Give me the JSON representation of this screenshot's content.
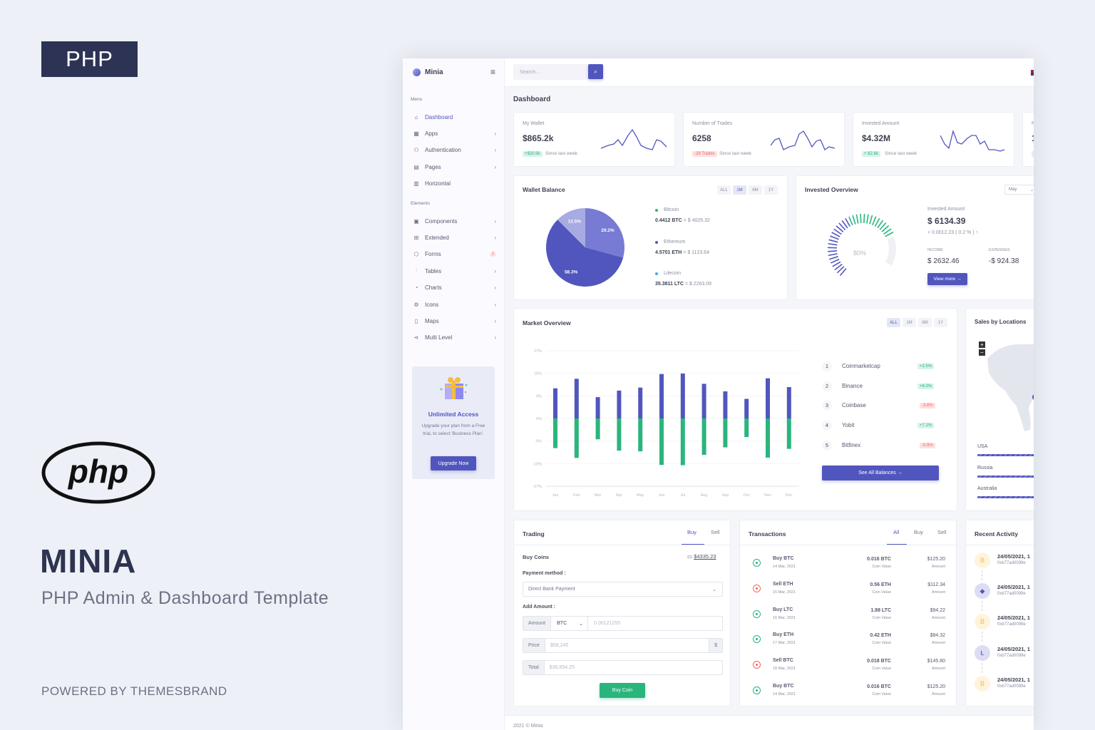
{
  "promo": {
    "badge": "PHP",
    "logo_text": "php",
    "title": "MINIA",
    "subtitle": "PHP Admin & Dashboard Template",
    "powered": "POWERED BY THEMESBRAND"
  },
  "colors": {
    "primary": "#5156be",
    "success": "#2ab57d",
    "danger": "#fd625e",
    "warning": "#ffbf53",
    "badge_bg": "#2c3354"
  },
  "sidebar": {
    "app_name": "Minia",
    "menu_label": "Menu",
    "elements_label": "Elements",
    "menu_items": [
      {
        "label": "Dashboard",
        "icon": "home-icon",
        "active": true
      },
      {
        "label": "Apps",
        "icon": "grid-icon"
      },
      {
        "label": "Authentication",
        "icon": "users-icon"
      },
      {
        "label": "Pages",
        "icon": "file-icon"
      },
      {
        "label": "Horizontal",
        "icon": "layout-icon"
      }
    ],
    "element_items": [
      {
        "label": "Components",
        "icon": "briefcase-icon"
      },
      {
        "label": "Extended",
        "icon": "gift-icon"
      },
      {
        "label": "Forms",
        "icon": "box-icon",
        "badge": "7"
      },
      {
        "label": "Tables",
        "icon": "sliders-icon"
      },
      {
        "label": "Charts",
        "icon": "pie-chart-icon"
      },
      {
        "label": "Icons",
        "icon": "cpu-icon"
      },
      {
        "label": "Maps",
        "icon": "map-icon"
      },
      {
        "label": "Multi Level",
        "icon": "share-icon"
      }
    ],
    "upgrade": {
      "title": "Unlimited Access",
      "text": "Upgrade your plan from a Free trial, to select 'Business Plan'.",
      "button": "Upgrade Now"
    }
  },
  "topbar": {
    "search_placeholder": "Search..."
  },
  "page_title": "Dashboard",
  "stats": [
    {
      "label": "My Wallet",
      "value": "$865.2k",
      "change": "+$20.9k",
      "trend": "up",
      "note": "Since last week"
    },
    {
      "label": "Number of Trades",
      "value": "6258",
      "change": "-29 Trades",
      "trend": "down",
      "note": "Since last week"
    },
    {
      "label": "Invested Amount",
      "value": "$4.32M",
      "change": "+ $2.8k",
      "trend": "up",
      "note": "Since last week"
    },
    {
      "label": "P",
      "value": "1",
      "change": "+",
      "trend": "up",
      "note": ""
    }
  ],
  "wallet": {
    "title": "Wallet Balance",
    "filters": [
      "ALL",
      "1M",
      "6M",
      "1Y"
    ],
    "active_filter": "1M",
    "slices": [
      {
        "label": "29.2%",
        "value": 29.2,
        "color": "#777bd3"
      },
      {
        "label": "58.3%",
        "value": 58.3,
        "color": "#5156be"
      },
      {
        "label": "12.5%",
        "value": 12.5,
        "color": "#a8aae2"
      }
    ],
    "coins": [
      {
        "name": "Bitcoin",
        "amount": "0.4412 BTC",
        "usd": "= $ 4025.32",
        "dot": "#2ab57d"
      },
      {
        "name": "Ethereum",
        "amount": "4.5701 ETH",
        "usd": "= $ 1123.64",
        "dot": "#5156be"
      },
      {
        "name": "Litecoin",
        "amount": "35.3811 LTC",
        "usd": "= $ 2263.09",
        "dot": "#4ba6ef"
      }
    ]
  },
  "invested": {
    "title": "Invested Overview",
    "month": "May",
    "gauge_percent": 80,
    "gauge_label": "80%",
    "amount_label": "Invested Amount",
    "amount": "$ 6134.39",
    "change": "+ 0.0012.23 ( 0.2 % )",
    "income_label": "INCOME",
    "income": "$ 2632.46",
    "expenses_label": "EXPENSES",
    "expenses": "-$ 924.38",
    "button": "View more"
  },
  "market": {
    "title": "Market Overview",
    "filters": [
      "ALL",
      "1M",
      "6M",
      "1Y"
    ],
    "active_filter": "ALL",
    "exchanges": [
      {
        "rank": "1",
        "name": "Coinmarketcap",
        "change": "+2.5%",
        "trend": "up"
      },
      {
        "rank": "2",
        "name": "Binance",
        "change": "+8.3%",
        "trend": "up"
      },
      {
        "rank": "3",
        "name": "Coinbase",
        "change": "-3.6%",
        "trend": "down"
      },
      {
        "rank": "4",
        "name": "Yobit",
        "change": "+7.1%",
        "trend": "up"
      },
      {
        "rank": "5",
        "name": "Bitfinex",
        "change": "-0.9%",
        "trend": "down"
      }
    ],
    "button": "See All Balances"
  },
  "chart_data": {
    "type": "bar",
    "categories": [
      "Jan",
      "Feb",
      "Mar",
      "Apr",
      "May",
      "Jun",
      "Jul",
      "Aug",
      "Sep",
      "Oct",
      "Nov",
      "Dec"
    ],
    "series": [
      {
        "values": [
          12,
          15.8,
          8.5,
          11.1,
          12.3,
          17.7,
          17.9,
          13.8,
          10.8,
          7.8,
          16,
          12.5
        ],
        "color": "#5156be"
      },
      {
        "values": [
          -11.8,
          -15.7,
          -8.3,
          -12.8,
          -13.1,
          -18.5,
          -18.6,
          -14.5,
          -11.5,
          -7.4,
          -15.6,
          -12.1
        ],
        "color": "#2ab57d"
      }
    ],
    "ylim": [
      -27,
      27
    ],
    "yticks": [
      "27%",
      "18%",
      "9%",
      "0%",
      "-9%",
      "-18%",
      "-27%"
    ],
    "stacked": true,
    "grid": true
  },
  "sales": {
    "title": "Sales by Locations",
    "zoom_in": "+",
    "zoom_out": "−",
    "countries": [
      {
        "name": "USA"
      },
      {
        "name": "Russia"
      },
      {
        "name": "Australia"
      }
    ]
  },
  "trading": {
    "title": "Trading",
    "tabs": [
      "Buy",
      "Sell"
    ],
    "active_tab": "Buy",
    "buy_coins": "Buy Coins",
    "balance": "$4335.23",
    "payment_label": "Payment method :",
    "payment_value": "Direct Bank Payment",
    "add_amount": "Add Amount :",
    "amount_addon": "Amount",
    "currency": "BTC",
    "amount_placeholder": "0.00121255",
    "price_addon": "Price",
    "price_placeholder": "$58,245",
    "price_suffix": "$",
    "total_addon": "Total",
    "total_placeholder": "$36,854.25",
    "button": "Buy Coin"
  },
  "transactions": {
    "title": "Transactions",
    "tabs": [
      "All",
      "Buy",
      "Sell"
    ],
    "active_tab": "All",
    "coin_value_label": "Coin Value",
    "amount_label": "Amount",
    "rows": [
      {
        "type": "Buy BTC",
        "date": "14 Mar, 2021",
        "coin": "0.016 BTC",
        "amount": "$125.20",
        "dir": "buy"
      },
      {
        "type": "Sell ETH",
        "date": "15 Mar, 2021",
        "coin": "0.56 ETH",
        "amount": "$112.34",
        "dir": "sell"
      },
      {
        "type": "Buy LTC",
        "date": "16 Mar, 2021",
        "coin": "1.88 LTC",
        "amount": "$94.22",
        "dir": "buy"
      },
      {
        "type": "Buy ETH",
        "date": "17 Mar, 2021",
        "coin": "0.42 ETH",
        "amount": "$84.32",
        "dir": "buy"
      },
      {
        "type": "Sell BTC",
        "date": "18 Mar, 2021",
        "coin": "0.018 BTC",
        "amount": "$145.80",
        "dir": "sell"
      },
      {
        "type": "Buy BTC",
        "date": "14 Mar, 2021",
        "coin": "0.016 BTC",
        "amount": "$125.20",
        "dir": "buy"
      }
    ]
  },
  "activity": {
    "title": "Recent Activity",
    "items": [
      {
        "coin": "B",
        "date": "24/05/2021, 1",
        "hash": "0xb77ad0099e"
      },
      {
        "coin": "◆",
        "date": "24/05/2021, 1",
        "hash": "0xb77ad0099e"
      },
      {
        "coin": "B",
        "date": "24/05/2021, 1",
        "hash": "0xb77ad0099e"
      },
      {
        "coin": "Ł",
        "date": "24/05/2021, 1",
        "hash": "0xb77ad0099e"
      },
      {
        "coin": "B",
        "date": "24/05/2021, 1",
        "hash": "0xb77ad0099e"
      }
    ]
  },
  "footer": "2021 © Minia"
}
